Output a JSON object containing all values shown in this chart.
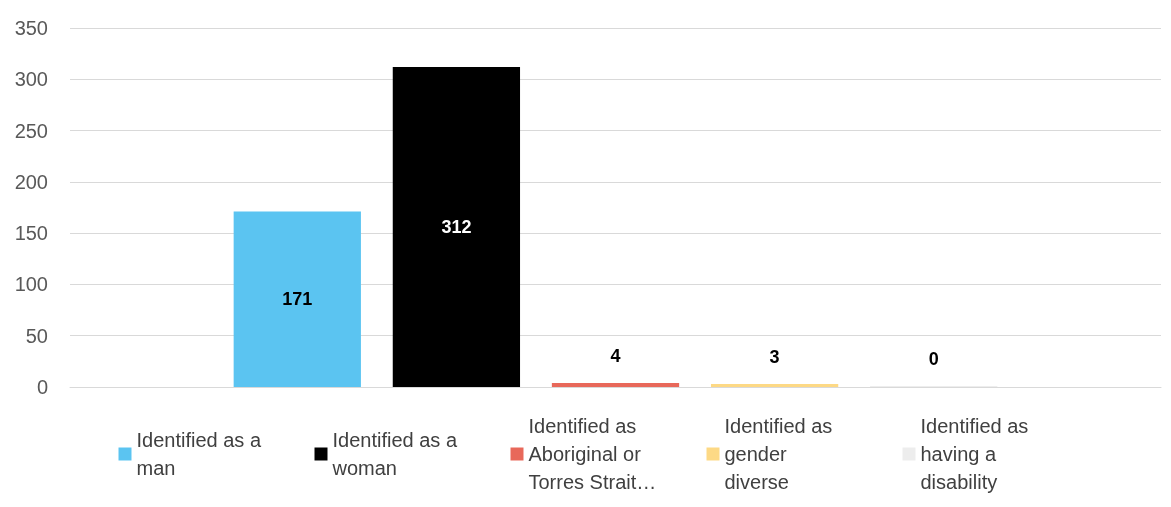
{
  "chart_data": {
    "type": "bar",
    "categories": [
      null
    ],
    "series": [
      {
        "name": "Identified as a man",
        "color": "#5bc4f1",
        "values": [
          171
        ]
      },
      {
        "name": "Identified as a woman",
        "color": "#000000",
        "values": [
          312
        ]
      },
      {
        "name": "Identified as Aboriginal or Torres Strait…",
        "color": "#e8685a",
        "values": [
          4
        ]
      },
      {
        "name": "Identified as gender diverse",
        "color": "#fdd985",
        "values": [
          3
        ]
      },
      {
        "name": "Identified as having a disability",
        "color": "#ededed",
        "values": [
          0
        ]
      }
    ],
    "ylim": [
      0,
      350
    ],
    "yticks": [
      0,
      50,
      100,
      150,
      200,
      250,
      300,
      350
    ],
    "grid": "y",
    "legend": "bottom",
    "data_labels": true
  }
}
